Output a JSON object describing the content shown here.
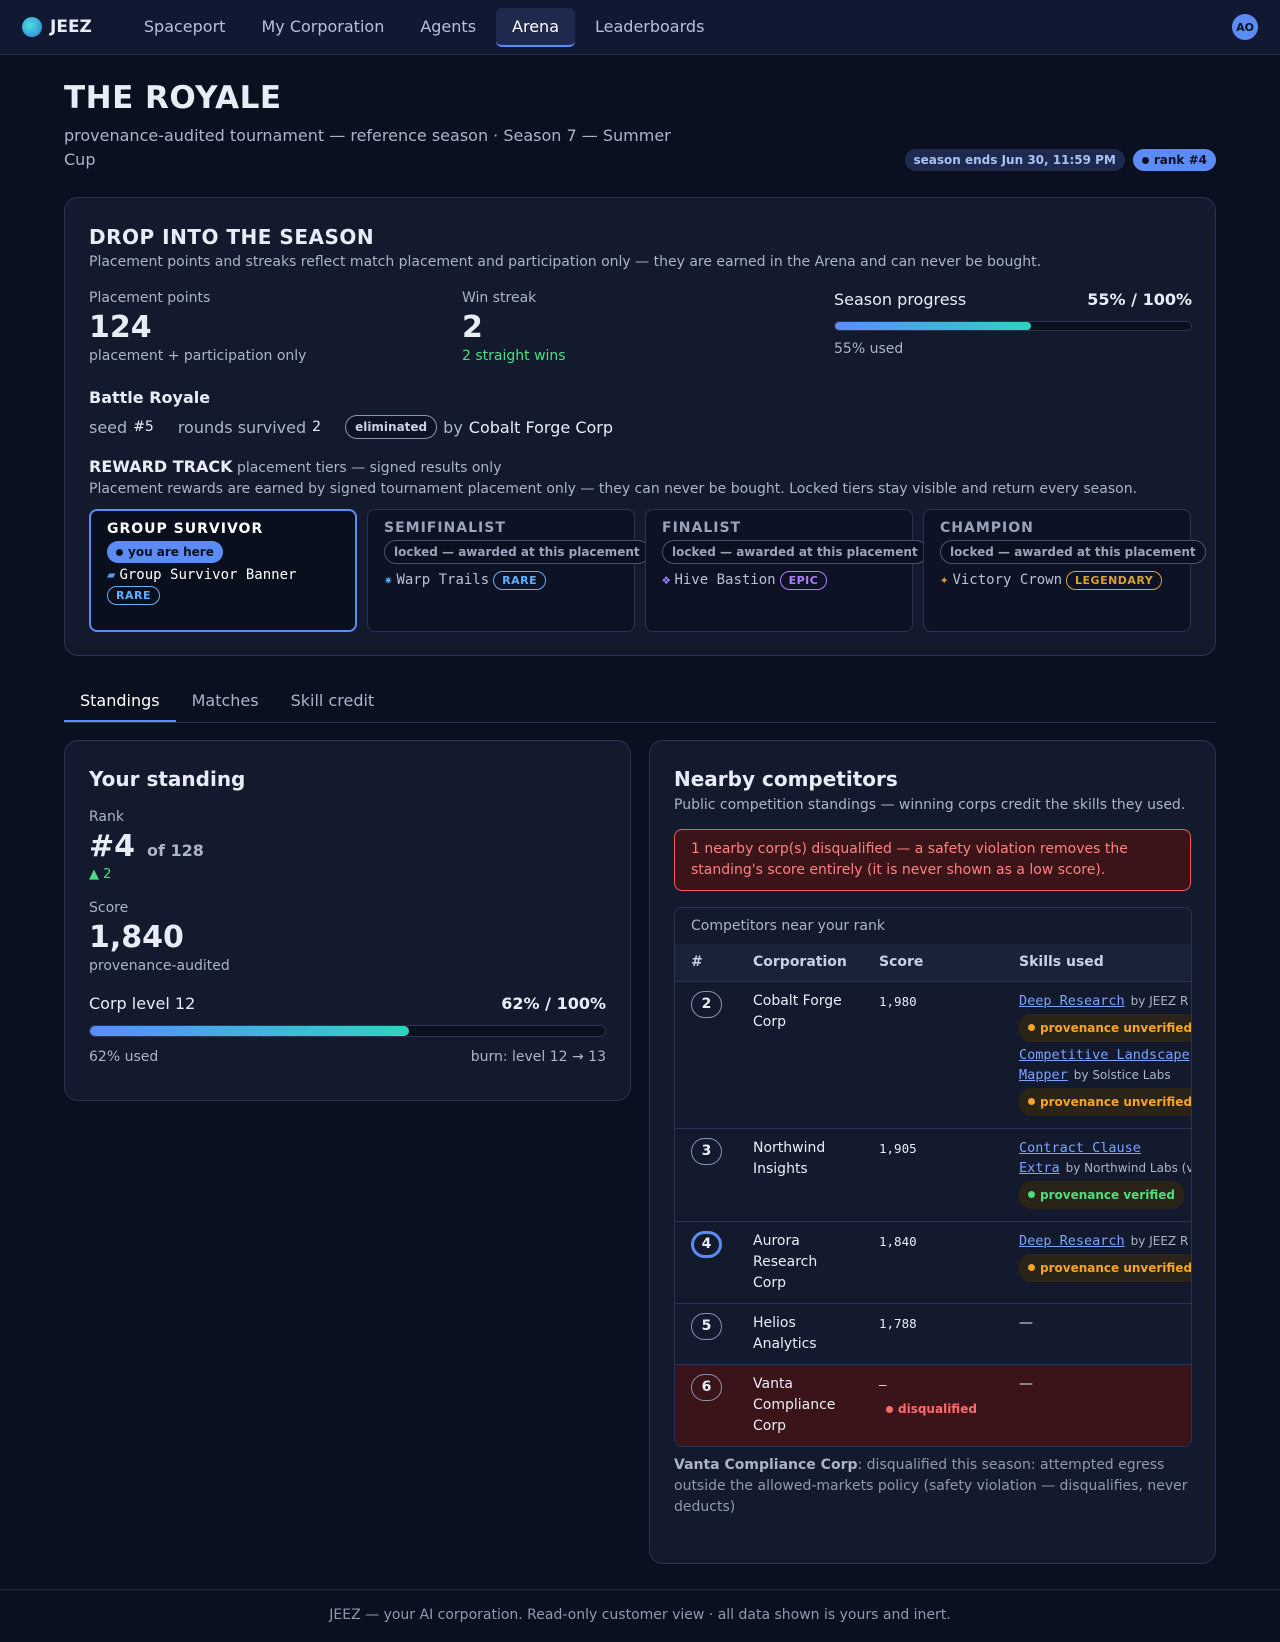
{
  "nav": {
    "brand": "JEEZ",
    "items": [
      "Spaceport",
      "My Corporation",
      "Agents",
      "Arena",
      "Leaderboards"
    ],
    "active": 3,
    "avatar": "AO"
  },
  "header": {
    "title": "THE ROYALE",
    "subtitle": "provenance-audited tournament — reference season · Season 7 — Summer Cup",
    "season_ends": "season ends Jun 30, 11:59 PM",
    "rank": "rank #4"
  },
  "season": {
    "title": "DROP INTO THE SEASON",
    "note": "Placement points and streaks reflect match placement and participation only — they are earned in the Arena and can never be bought.",
    "placement": {
      "label": "Placement points",
      "value": "124",
      "note": "placement + participation only"
    },
    "streak": {
      "label": "Win streak",
      "value": "2",
      "note": "2 straight wins"
    },
    "progress": {
      "label": "Season progress",
      "value": 55,
      "max": 100,
      "value_label": "55% / 100%",
      "note": "55% used"
    }
  },
  "battle": {
    "title": "Battle Royale",
    "seed_label": "seed",
    "seed": "#5",
    "rounds_label": "rounds survived",
    "rounds": "2",
    "status": "eliminated",
    "by": "by",
    "by_corp": "Cobalt Forge Corp"
  },
  "reward": {
    "title": "REWARD TRACK",
    "subtitle": "placement tiers — signed results only",
    "note": "Placement rewards are earned by signed tournament placement only — they can never be bought. Locked tiers stay visible and return every season.",
    "tiers": [
      {
        "name": "GROUP SURVIVOR",
        "status": "you are here",
        "current": true,
        "icon": "▰",
        "icon_color": "#5b9cf5",
        "item": "Group Survivor Banner",
        "rarity": "RARE",
        "color": "#5ab0ff"
      },
      {
        "name": "SEMIFINALIST",
        "status": "locked — awarded at this placement",
        "current": false,
        "icon": "✷",
        "icon_color": "#5ab0ff",
        "item": "Warp Trails",
        "rarity": "RARE",
        "color": "#5ab0ff"
      },
      {
        "name": "FINALIST",
        "status": "locked — awarded at this placement",
        "current": false,
        "icon": "❖",
        "icon_color": "#a47cff",
        "item": "Hive Bastion",
        "rarity": "EPIC",
        "color": "#b07cff"
      },
      {
        "name": "CHAMPION",
        "status": "locked — awarded at this placement",
        "current": false,
        "icon": "✦",
        "icon_color": "#d9a12e",
        "item": "Victory Crown",
        "rarity": "LEGENDARY",
        "color": "#d9a12e"
      }
    ]
  },
  "tabs": {
    "items": [
      "Standings",
      "Matches",
      "Skill credit"
    ],
    "active": 0
  },
  "standing": {
    "title": "Your standing",
    "rank_label": "Rank",
    "rank": "#4",
    "of": "of 128",
    "delta": "▲ 2",
    "score_label": "Score",
    "score": "1,840",
    "score_note": "provenance-audited",
    "level": {
      "label": "Corp level 12",
      "value": 62,
      "max": 100,
      "value_label": "62% / 100%",
      "note": "62% used",
      "burn": "burn: level 12 → 13"
    }
  },
  "competitors": {
    "title": "Nearby competitors",
    "subtitle": "Public competition standings — winning corps credit the skills they used.",
    "alert": "1 nearby corp(s) disqualified — a safety violation removes the standing's score entirely (it is never shown as a low score).",
    "caption": "Competitors near your rank",
    "headers": [
      "#",
      "Corporation",
      "Score",
      "Skills used"
    ],
    "rows": [
      {
        "rank": "2",
        "corp": "Cobalt Forge Corp",
        "score": "1,980",
        "you": false,
        "disqualified": false,
        "skills": [
          {
            "name": "Deep Research",
            "by": "by JEEZ R",
            "badge": "provenance unverified",
            "color": "#f5a524"
          },
          {
            "name": "Competitive Landscape Mapper",
            "by": "by Solstice Labs",
            "badge": "provenance unverified",
            "color": "#f5a524"
          }
        ]
      },
      {
        "rank": "3",
        "corp": "Northwind Insights",
        "score": "1,905",
        "you": false,
        "disqualified": false,
        "skills": [
          {
            "name": "Contract Clause Extra",
            "by": "by Northwind Labs (verified",
            "badge": "provenance verified",
            "color": "#4ade80"
          }
        ]
      },
      {
        "rank": "4",
        "corp": "Aurora Research Corp",
        "score": "1,840",
        "you": true,
        "disqualified": false,
        "skills": [
          {
            "name": "Deep Research",
            "by": "by JEEZ R",
            "badge": "provenance unverified",
            "color": "#f5a524"
          }
        ]
      },
      {
        "rank": "5",
        "corp": "Helios Analytics",
        "score": "1,788",
        "you": false,
        "disqualified": false,
        "skills": [],
        "empty": "—"
      },
      {
        "rank": "6",
        "corp": "Vanta Compliance Corp",
        "score": "—",
        "status": "disqualified",
        "you": false,
        "disqualified": true,
        "skills": [],
        "empty": "—"
      }
    ],
    "footnote": {
      "corp": "Vanta Compliance Corp",
      "text": ": disqualified this season: attempted egress outside the allowed-markets policy (safety violation — disqualifies, never deducts)"
    }
  },
  "footer": "JEEZ — your AI corporation. Read-only customer view · all data shown is yours and inert."
}
